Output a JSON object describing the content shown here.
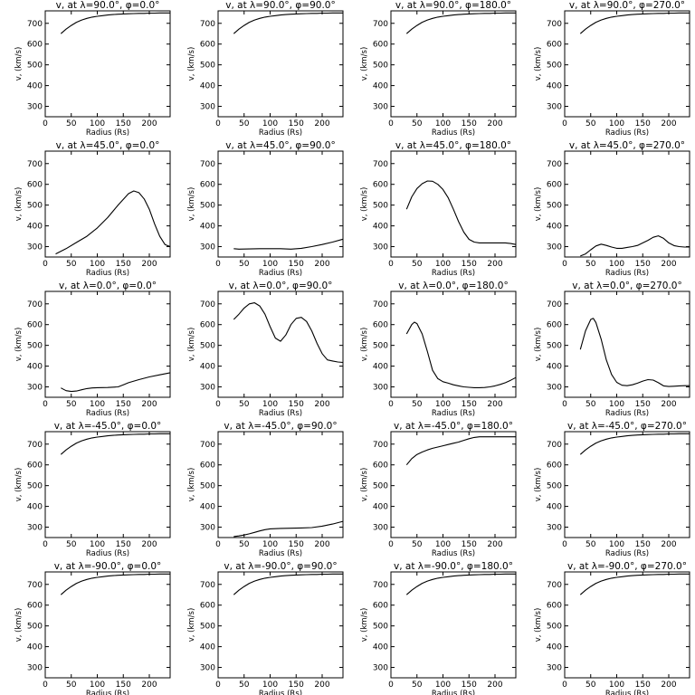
{
  "chart_data": [
    {
      "type": "line",
      "title": "v, at λ=90.0°, φ=0.0°",
      "xlabel": "Radius (Rs)",
      "ylabel": "v, (km/s)",
      "xlim": [
        0,
        240
      ],
      "ylim": [
        250,
        760
      ],
      "x": [
        30,
        40,
        50,
        60,
        70,
        80,
        90,
        100,
        110,
        120,
        130,
        140,
        150,
        160,
        170,
        180,
        190,
        200,
        210,
        220,
        230,
        240
      ],
      "y": [
        650,
        672,
        690,
        705,
        716,
        724,
        730,
        734,
        737,
        740,
        742,
        744,
        745,
        746,
        747,
        748,
        748,
        749,
        749,
        750,
        750,
        750
      ]
    },
    {
      "type": "line",
      "title": "v, at λ=90.0°, φ=90.0°",
      "xlabel": "Radius (Rs)",
      "ylabel": "v, (km/s)",
      "xlim": [
        0,
        240
      ],
      "ylim": [
        250,
        760
      ],
      "x": [
        30,
        40,
        50,
        60,
        70,
        80,
        90,
        100,
        110,
        120,
        130,
        140,
        150,
        160,
        170,
        180,
        190,
        200,
        210,
        220,
        230,
        240
      ],
      "y": [
        650,
        672,
        690,
        705,
        716,
        724,
        730,
        734,
        737,
        740,
        742,
        744,
        745,
        746,
        747,
        748,
        748,
        749,
        749,
        750,
        750,
        750
      ]
    },
    {
      "type": "line",
      "title": "v, at λ=90.0°, φ=180.0°",
      "xlabel": "Radius (Rs)",
      "ylabel": "v, (km/s)",
      "xlim": [
        0,
        240
      ],
      "ylim": [
        250,
        760
      ],
      "x": [
        30,
        40,
        50,
        60,
        70,
        80,
        90,
        100,
        110,
        120,
        130,
        140,
        150,
        160,
        170,
        180,
        190,
        200,
        210,
        220,
        230,
        240
      ],
      "y": [
        650,
        672,
        690,
        705,
        716,
        724,
        730,
        734,
        737,
        740,
        742,
        744,
        745,
        746,
        747,
        748,
        748,
        749,
        749,
        750,
        750,
        750
      ]
    },
    {
      "type": "line",
      "title": "v, at λ=90.0°, φ=270.0°",
      "xlabel": "Radius (Rs)",
      "ylabel": "v, (km/s)",
      "xlim": [
        0,
        240
      ],
      "ylim": [
        250,
        760
      ],
      "x": [
        30,
        40,
        50,
        60,
        70,
        80,
        90,
        100,
        110,
        120,
        130,
        140,
        150,
        160,
        170,
        180,
        190,
        200,
        210,
        220,
        230,
        240
      ],
      "y": [
        650,
        672,
        690,
        705,
        716,
        724,
        730,
        734,
        737,
        740,
        742,
        744,
        745,
        746,
        747,
        748,
        748,
        749,
        749,
        750,
        750,
        750
      ]
    },
    {
      "type": "line",
      "title": "v, at λ=45.0°, φ=0.0°",
      "xlabel": "Radius (Rs)",
      "ylabel": "v, (km/s)",
      "xlim": [
        0,
        240
      ],
      "ylim": [
        250,
        760
      ],
      "x": [
        20,
        40,
        60,
        80,
        100,
        120,
        140,
        160,
        170,
        180,
        190,
        200,
        210,
        220,
        230,
        240
      ],
      "y": [
        265,
        290,
        320,
        350,
        390,
        440,
        500,
        555,
        568,
        560,
        530,
        480,
        410,
        350,
        310,
        300
      ]
    },
    {
      "type": "line",
      "title": "v, at λ=45.0°, φ=90.0°",
      "xlabel": "Radius (Rs)",
      "ylabel": "v, (km/s)",
      "xlim": [
        0,
        240
      ],
      "ylim": [
        250,
        760
      ],
      "x": [
        30,
        40,
        60,
        80,
        100,
        120,
        140,
        160,
        180,
        200,
        220,
        240
      ],
      "y": [
        290,
        288,
        289,
        290,
        290,
        290,
        288,
        292,
        300,
        310,
        322,
        336
      ]
    },
    {
      "type": "line",
      "title": "v, at λ=45.0°, φ=180.0°",
      "xlabel": "Radius (Rs)",
      "ylabel": "v, (km/s)",
      "xlim": [
        0,
        240
      ],
      "ylim": [
        250,
        760
      ],
      "x": [
        30,
        40,
        50,
        60,
        70,
        80,
        90,
        100,
        110,
        120,
        130,
        140,
        150,
        160,
        170,
        180,
        190,
        200,
        210,
        220,
        230,
        240
      ],
      "y": [
        480,
        540,
        580,
        603,
        616,
        615,
        600,
        575,
        535,
        480,
        420,
        370,
        335,
        322,
        318,
        318,
        318,
        318,
        318,
        318,
        315,
        310
      ]
    },
    {
      "type": "line",
      "title": "v, at λ=45.0°, φ=270.0°",
      "xlabel": "Radius (Rs)",
      "ylabel": "v, (km/s)",
      "xlim": [
        0,
        240
      ],
      "ylim": [
        250,
        760
      ],
      "x": [
        30,
        40,
        50,
        60,
        70,
        80,
        90,
        100,
        110,
        120,
        130,
        140,
        150,
        160,
        170,
        180,
        190,
        200,
        210,
        220,
        230,
        240
      ],
      "y": [
        255,
        265,
        285,
        303,
        312,
        306,
        298,
        292,
        292,
        296,
        300,
        306,
        318,
        330,
        345,
        352,
        340,
        318,
        305,
        300,
        298,
        298
      ]
    },
    {
      "type": "line",
      "title": "v, at λ=0.0°, φ=0.0°",
      "xlabel": "Radius (Rs)",
      "ylabel": "v, (km/s)",
      "xlim": [
        0,
        240
      ],
      "ylim": [
        250,
        760
      ],
      "x": [
        30,
        40,
        50,
        60,
        70,
        80,
        90,
        100,
        120,
        140,
        150,
        160,
        180,
        200,
        220,
        240
      ],
      "y": [
        295,
        282,
        278,
        280,
        286,
        292,
        295,
        296,
        297,
        300,
        310,
        320,
        335,
        348,
        358,
        368
      ]
    },
    {
      "type": "line",
      "title": "v, at λ=0.0°, φ=90.0°",
      "xlabel": "Radius (Rs)",
      "ylabel": "v, (km/s)",
      "xlim": [
        0,
        240
      ],
      "ylim": [
        250,
        760
      ],
      "x": [
        30,
        40,
        50,
        60,
        70,
        80,
        90,
        100,
        110,
        120,
        130,
        140,
        150,
        160,
        170,
        180,
        190,
        200,
        210,
        220,
        230,
        240
      ],
      "y": [
        625,
        650,
        680,
        700,
        705,
        690,
        650,
        590,
        535,
        520,
        550,
        600,
        630,
        635,
        615,
        570,
        510,
        460,
        430,
        425,
        420,
        418
      ]
    },
    {
      "type": "line",
      "title": "v, at λ=0.0°, φ=180.0°",
      "xlabel": "Radius (Rs)",
      "ylabel": "v, (km/s)",
      "xlim": [
        0,
        240
      ],
      "ylim": [
        250,
        760
      ],
      "x": [
        30,
        40,
        45,
        50,
        60,
        70,
        80,
        90,
        100,
        110,
        120,
        130,
        140,
        150,
        160,
        170,
        180,
        190,
        200,
        210,
        220,
        230,
        240
      ],
      "y": [
        555,
        600,
        612,
        605,
        555,
        470,
        380,
        340,
        325,
        318,
        310,
        305,
        300,
        298,
        296,
        296,
        297,
        300,
        305,
        312,
        320,
        332,
        345
      ]
    },
    {
      "type": "line",
      "title": "v, at λ=0.0°, φ=270.0°",
      "xlabel": "Radius (Rs)",
      "ylabel": "v, (km/s)",
      "xlim": [
        0,
        240
      ],
      "ylim": [
        250,
        760
      ],
      "x": [
        30,
        40,
        50,
        55,
        60,
        70,
        80,
        90,
        100,
        110,
        120,
        130,
        140,
        150,
        160,
        170,
        180,
        190,
        200,
        210,
        220,
        230,
        240
      ],
      "y": [
        480,
        570,
        625,
        630,
        610,
        530,
        430,
        360,
        322,
        308,
        306,
        310,
        318,
        328,
        335,
        333,
        320,
        305,
        302,
        303,
        305,
        306,
        306
      ]
    },
    {
      "type": "line",
      "title": "v, at λ=-45.0°, φ=0.0°",
      "xlabel": "Radius (Rs)",
      "ylabel": "v, (km/s)",
      "xlim": [
        0,
        240
      ],
      "ylim": [
        250,
        760
      ],
      "x": [
        30,
        40,
        50,
        60,
        70,
        80,
        90,
        100,
        110,
        120,
        130,
        140,
        150,
        160,
        170,
        180,
        190,
        200,
        210,
        220,
        230,
        240
      ],
      "y": [
        650,
        672,
        690,
        705,
        716,
        724,
        730,
        734,
        737,
        740,
        742,
        744,
        745,
        746,
        747,
        748,
        748,
        749,
        749,
        750,
        750,
        750
      ]
    },
    {
      "type": "line",
      "title": "v, at λ=-45.0°, φ=90.0°",
      "xlabel": "Radius (Rs)",
      "ylabel": "v, (km/s)",
      "xlim": [
        0,
        240
      ],
      "ylim": [
        250,
        760
      ],
      "x": [
        30,
        40,
        50,
        60,
        70,
        80,
        90,
        100,
        120,
        140,
        160,
        180,
        200,
        220,
        240
      ],
      "y": [
        255,
        258,
        262,
        268,
        275,
        282,
        288,
        292,
        294,
        295,
        296,
        298,
        305,
        315,
        328
      ]
    },
    {
      "type": "line",
      "title": "v, at λ=-45.0°, φ=180.0°",
      "xlabel": "Radius (Rs)",
      "ylabel": "v, (km/s)",
      "xlim": [
        0,
        240
      ],
      "ylim": [
        250,
        760
      ],
      "x": [
        30,
        40,
        50,
        60,
        70,
        80,
        90,
        100,
        110,
        120,
        130,
        140,
        150,
        160,
        170,
        180,
        190,
        200,
        210,
        220,
        230,
        240
      ],
      "y": [
        600,
        630,
        650,
        662,
        672,
        680,
        686,
        692,
        698,
        704,
        710,
        718,
        726,
        732,
        735,
        735,
        735,
        735,
        735,
        735,
        735,
        735
      ]
    },
    {
      "type": "line",
      "title": "v, at λ=-45.0°, φ=270.0°",
      "xlabel": "Radius (Rs)",
      "ylabel": "v, (km/s)",
      "xlim": [
        0,
        240
      ],
      "ylim": [
        250,
        760
      ],
      "x": [
        30,
        40,
        50,
        60,
        70,
        80,
        90,
        100,
        110,
        120,
        130,
        140,
        150,
        160,
        170,
        180,
        190,
        200,
        210,
        220,
        230,
        240
      ],
      "y": [
        650,
        672,
        690,
        705,
        716,
        724,
        730,
        734,
        737,
        740,
        742,
        744,
        745,
        746,
        747,
        748,
        748,
        749,
        749,
        750,
        750,
        750
      ]
    },
    {
      "type": "line",
      "title": "v, at λ=-90.0°, φ=0.0°",
      "xlabel": "Radius (Rs)",
      "ylabel": "v, (km/s)",
      "xlim": [
        0,
        240
      ],
      "ylim": [
        250,
        760
      ],
      "x": [
        30,
        40,
        50,
        60,
        70,
        80,
        90,
        100,
        110,
        120,
        130,
        140,
        150,
        160,
        170,
        180,
        190,
        200,
        210,
        220,
        230,
        240
      ],
      "y": [
        650,
        672,
        690,
        705,
        716,
        724,
        730,
        734,
        737,
        740,
        742,
        744,
        745,
        746,
        747,
        748,
        748,
        749,
        749,
        750,
        750,
        750
      ]
    },
    {
      "type": "line",
      "title": "v, at λ=-90.0°, φ=90.0°",
      "xlabel": "Radius (Rs)",
      "ylabel": "v, (km/s)",
      "xlim": [
        0,
        240
      ],
      "ylim": [
        250,
        760
      ],
      "x": [
        30,
        40,
        50,
        60,
        70,
        80,
        90,
        100,
        110,
        120,
        130,
        140,
        150,
        160,
        170,
        180,
        190,
        200,
        210,
        220,
        230,
        240
      ],
      "y": [
        650,
        672,
        690,
        705,
        716,
        724,
        730,
        734,
        737,
        740,
        742,
        744,
        745,
        746,
        747,
        748,
        748,
        749,
        749,
        750,
        750,
        750
      ]
    },
    {
      "type": "line",
      "title": "v, at λ=-90.0°, φ=180.0°",
      "xlabel": "Radius (Rs)",
      "ylabel": "v, (km/s)",
      "xlim": [
        0,
        240
      ],
      "ylim": [
        250,
        760
      ],
      "x": [
        30,
        40,
        50,
        60,
        70,
        80,
        90,
        100,
        110,
        120,
        130,
        140,
        150,
        160,
        170,
        180,
        190,
        200,
        210,
        220,
        230,
        240
      ],
      "y": [
        650,
        672,
        690,
        705,
        716,
        724,
        730,
        734,
        737,
        740,
        742,
        744,
        745,
        746,
        747,
        748,
        748,
        749,
        749,
        750,
        750,
        750
      ]
    },
    {
      "type": "line",
      "title": "v, at λ=-90.0°, φ=270.0°",
      "xlabel": "Radius (Rs)",
      "ylabel": "v, (km/s)",
      "xlim": [
        0,
        240
      ],
      "ylim": [
        250,
        760
      ],
      "x": [
        30,
        40,
        50,
        60,
        70,
        80,
        90,
        100,
        110,
        120,
        130,
        140,
        150,
        160,
        170,
        180,
        190,
        200,
        210,
        220,
        230,
        240
      ],
      "y": [
        650,
        672,
        690,
        705,
        716,
        724,
        730,
        734,
        737,
        740,
        742,
        744,
        745,
        746,
        747,
        748,
        748,
        749,
        749,
        750,
        750,
        750
      ]
    }
  ],
  "axes": {
    "x_ticks": [
      0,
      50,
      100,
      150,
      200
    ],
    "y_ticks": [
      300,
      400,
      500,
      600,
      700
    ]
  }
}
